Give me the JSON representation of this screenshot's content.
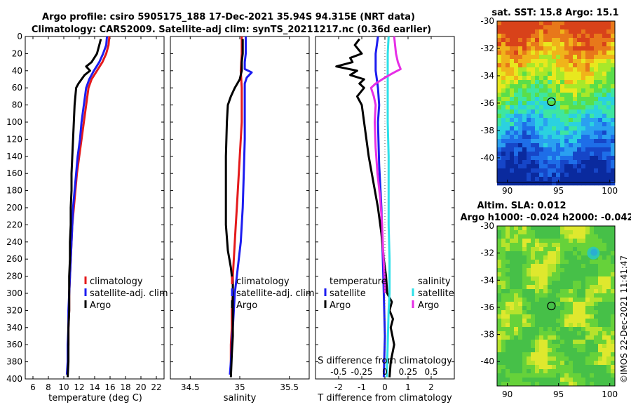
{
  "header": {
    "title_line1": "Argo profile: csiro 5905175_188 17-Dec-2021 35.94S 94.315E (NRT data)",
    "title_line2": "Climatology: CARS2009. Satellite-adj clim: synTS_20211217.nc (0.36d earlier)"
  },
  "colors": {
    "climatology": "#e41a1c",
    "satellite": "#1c1cf0",
    "argo": "#000000",
    "sal_satellite": "#2de0e8",
    "sal_argo": "#e62ee6"
  },
  "chart_data": [
    {
      "id": "temperature",
      "type": "line",
      "xlabel": "temperature (deg C)",
      "ylabel": "",
      "xlim": [
        5,
        23
      ],
      "ylim": [
        0,
        400
      ],
      "y_inverted": true,
      "xticks": [
        6,
        8,
        10,
        12,
        14,
        16,
        18,
        20,
        22
      ],
      "yticks": [
        0,
        20,
        40,
        60,
        80,
        100,
        120,
        140,
        160,
        180,
        200,
        220,
        240,
        260,
        280,
        300,
        320,
        340,
        360,
        380,
        400
      ],
      "legend": [
        "climatology",
        "satellite-adj. clim",
        "Argo"
      ],
      "series": [
        {
          "name": "climatology",
          "color": "#e41a1c",
          "depth": [
            0,
            10,
            20,
            30,
            40,
            50,
            60,
            80,
            100,
            120,
            140,
            160,
            180,
            200,
            220,
            240,
            260,
            280,
            300,
            320,
            340,
            360,
            380,
            395
          ],
          "values": [
            15.9,
            15.8,
            15.5,
            15.0,
            14.3,
            13.6,
            13.2,
            12.9,
            12.6,
            12.3,
            12.0,
            11.7,
            11.5,
            11.3,
            11.1,
            11.0,
            10.9,
            10.8,
            10.7,
            10.7,
            10.6,
            10.6,
            10.5,
            10.5
          ]
        },
        {
          "name": "satellite-adj. clim",
          "color": "#1c1cf0",
          "depth": [
            0,
            10,
            20,
            30,
            40,
            50,
            60,
            80,
            100,
            120,
            140,
            160,
            180,
            200,
            220,
            240,
            260,
            280,
            300,
            320,
            340,
            360,
            380,
            395
          ],
          "values": [
            15.6,
            15.5,
            15.1,
            14.6,
            13.9,
            13.3,
            12.9,
            12.6,
            12.3,
            12.1,
            11.8,
            11.6,
            11.4,
            11.2,
            11.1,
            11.0,
            10.9,
            10.8,
            10.7,
            10.6,
            10.6,
            10.5,
            10.5,
            10.4
          ]
        },
        {
          "name": "Argo",
          "color": "#000000",
          "depth": [
            3,
            10,
            20,
            30,
            35,
            40,
            45,
            50,
            55,
            60,
            70,
            80,
            100,
            120,
            140,
            160,
            180,
            200,
            220,
            240,
            260,
            280,
            300,
            320,
            340,
            360,
            380,
            398
          ],
          "values": [
            14.8,
            14.6,
            14.3,
            13.6,
            12.9,
            13.4,
            12.7,
            12.3,
            11.9,
            11.6,
            11.5,
            11.4,
            11.3,
            11.2,
            11.1,
            11.0,
            11.0,
            10.9,
            10.9,
            10.8,
            10.8,
            10.7,
            10.7,
            10.7,
            10.6,
            10.6,
            10.6,
            10.5
          ]
        }
      ]
    },
    {
      "id": "salinity",
      "type": "line",
      "xlabel": "salinity",
      "ylabel": "",
      "xlim": [
        34.3,
        35.7
      ],
      "ylim": [
        0,
        400
      ],
      "y_inverted": true,
      "xticks": [
        34.5,
        35,
        35.5
      ],
      "legend": [
        "climatology",
        "satellite-adj. clim",
        "Argo"
      ],
      "series": [
        {
          "name": "climatology",
          "color": "#e41a1c",
          "depth": [
            0,
            20,
            40,
            60,
            80,
            100,
            120,
            140,
            160,
            180,
            200,
            220,
            240,
            260,
            280,
            300,
            320,
            340,
            360,
            380,
            395
          ],
          "values": [
            35.02,
            35.02,
            35.01,
            35.02,
            35.02,
            35.02,
            35.01,
            35.0,
            34.99,
            34.98,
            34.97,
            34.96,
            34.95,
            34.94,
            34.93,
            34.93,
            34.92,
            34.92,
            34.91,
            34.91,
            34.91
          ]
        },
        {
          "name": "satellite-adj. clim",
          "color": "#1c1cf0",
          "depth": [
            0,
            20,
            30,
            38,
            42,
            48,
            55,
            80,
            120,
            160,
            200,
            240,
            260,
            280,
            300,
            320,
            340,
            360,
            380,
            395
          ],
          "values": [
            35.06,
            35.06,
            35.05,
            35.05,
            35.12,
            35.07,
            35.05,
            35.05,
            35.05,
            35.04,
            35.03,
            35.01,
            34.99,
            34.97,
            34.95,
            34.94,
            34.93,
            34.92,
            34.91,
            34.9
          ]
        },
        {
          "name": "Argo",
          "color": "#000000",
          "depth": [
            3,
            20,
            30,
            40,
            50,
            60,
            70,
            80,
            100,
            140,
            180,
            220,
            250,
            270,
            290,
            310,
            330,
            350,
            370,
            398
          ],
          "values": [
            35.03,
            35.03,
            35.02,
            35.02,
            35.0,
            34.95,
            34.91,
            34.88,
            34.87,
            34.86,
            34.86,
            34.86,
            34.88,
            34.91,
            34.93,
            34.93,
            34.93,
            34.93,
            34.92,
            34.91
          ]
        }
      ]
    },
    {
      "id": "difference",
      "type": "line",
      "xlabel": "T difference from climatology",
      "top_xlabel": "S difference from climatology",
      "ylabel": "",
      "xlim": [
        -3,
        3
      ],
      "s_xlim": [
        -0.75,
        0.75
      ],
      "ylim": [
        0,
        400
      ],
      "y_inverted": true,
      "xticks": [
        -2,
        -1,
        0,
        1,
        2
      ],
      "s_xticks": [
        -0.5,
        -0.25,
        0,
        0.25,
        0.5
      ],
      "s_xtick_labels": [
        "-0.5",
        "-0.25",
        "0",
        "0.25",
        "0.5"
      ],
      "legend_temperature": {
        "title": "temperature",
        "items": [
          "satellite",
          "Argo"
        ]
      },
      "legend_salinity": {
        "title": "salinity",
        "items": [
          "satellite",
          "Argo"
        ]
      },
      "series": [
        {
          "name": "temperature satellite",
          "axis": "T",
          "color": "#1c1cf0",
          "depth": [
            0,
            10,
            20,
            30,
            40,
            50,
            60,
            80,
            100,
            150,
            200,
            250,
            300,
            350,
            398
          ],
          "values": [
            -0.3,
            -0.35,
            -0.4,
            -0.4,
            -0.4,
            -0.35,
            -0.3,
            -0.25,
            -0.3,
            -0.25,
            -0.15,
            -0.1,
            -0.05,
            0.0,
            -0.05
          ]
        },
        {
          "name": "temperature Argo",
          "axis": "T",
          "color": "#000000",
          "depth": [
            3,
            10,
            20,
            25,
            30,
            35,
            40,
            45,
            50,
            55,
            60,
            70,
            80,
            100,
            140,
            170,
            200,
            230,
            260,
            280,
            300,
            310,
            320,
            330,
            340,
            360,
            380,
            398
          ],
          "values": [
            -1.1,
            -1.3,
            -1.0,
            -1.5,
            -1.4,
            -2.1,
            -1.2,
            -1.5,
            -0.9,
            -1.1,
            -0.9,
            -1.2,
            -1.0,
            -0.9,
            -0.7,
            -0.5,
            -0.3,
            -0.15,
            -0.05,
            0.05,
            0.1,
            0.3,
            0.2,
            0.35,
            0.25,
            0.4,
            0.25,
            0.2
          ]
        },
        {
          "name": "salinity satellite",
          "axis": "S",
          "color": "#2de0e8",
          "depth": [
            0,
            20,
            40,
            60,
            100,
            140,
            180,
            220,
            260,
            300,
            320,
            360,
            398
          ],
          "values": [
            0.04,
            0.03,
            0.03,
            0.03,
            0.03,
            0.04,
            0.04,
            0.04,
            0.05,
            0.05,
            0.04,
            0.03,
            0.02
          ]
        },
        {
          "name": "salinity Argo",
          "axis": "S",
          "color": "#e62ee6",
          "depth": [
            0,
            20,
            30,
            38,
            42,
            48,
            55,
            60,
            70,
            80,
            100,
            130,
            160,
            190,
            220,
            250,
            270,
            290,
            300
          ],
          "values": [
            0.1,
            0.12,
            0.14,
            0.17,
            0.1,
            0.0,
            -0.1,
            -0.15,
            -0.12,
            -0.1,
            -0.11,
            -0.1,
            -0.08,
            -0.05,
            -0.03,
            -0.02,
            -0.01,
            0.0,
            0.0
          ]
        }
      ]
    },
    {
      "id": "sst_map",
      "type": "heatmap",
      "title": "sat. SST: 15.8 Argo: 15.1",
      "xlim": [
        89,
        100.5
      ],
      "ylim": [
        -41.8,
        -30
      ],
      "xticks": [
        90,
        95,
        100
      ],
      "yticks": [
        -30,
        -32,
        -34,
        -36,
        -38,
        -40
      ],
      "marker_lon": 94.3,
      "marker_lat": -35.9
    },
    {
      "id": "sla_map",
      "type": "heatmap",
      "title_line1": "Altim. SLA: 0.012",
      "title_line2": "Argo h1000: -0.024 h2000: -0.042",
      "xlim": [
        89,
        100.5
      ],
      "ylim": [
        -41.8,
        -30
      ],
      "xticks": [
        90,
        95,
        100
      ],
      "yticks": [
        -30,
        -32,
        -34,
        -36,
        -38,
        -40
      ],
      "marker_lon": 94.3,
      "marker_lat": -35.9
    }
  ],
  "footer": {
    "credit": "©IMOS 22-Dec-2021 11:41:47"
  }
}
